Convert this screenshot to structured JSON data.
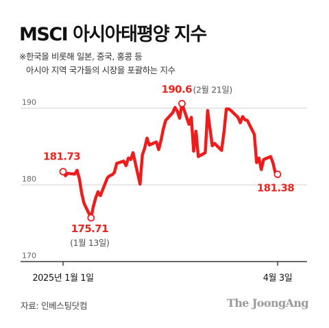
{
  "title": "MSCI 아시아태평양 지수",
  "subtitle_line1": "※한국을 비롯해 일본, 중국, 홍콩 등",
  "subtitle_line2": "아시아 지역 국가들의 시장을 포괄하는 지수",
  "source": "자료: 인베스팅닷컴",
  "brand": "The JoongAng",
  "colors": {
    "line": "#ee1d1d",
    "annotation": "#e8251f",
    "grid": "#cfcfcf",
    "axis_text": "#666666"
  },
  "chart_data": {
    "type": "line",
    "title": "MSCI 아시아태평양 지수",
    "ylim": [
      170,
      190
    ],
    "yticks": [
      170,
      180,
      190
    ],
    "grid": true,
    "xticks": [
      "2025년 1월 1일",
      "4월 3일"
    ],
    "series": [
      {
        "name": "",
        "x": [
          "2025-01-01",
          "2025-01-02",
          "2025-01-03",
          "2025-01-06",
          "2025-01-07",
          "2025-01-08",
          "2025-01-09",
          "2025-01-10",
          "2025-01-13",
          "2025-01-14",
          "2025-01-15",
          "2025-01-16",
          "2025-01-17",
          "2025-01-20",
          "2025-01-21",
          "2025-01-22",
          "2025-01-23",
          "2025-01-24",
          "2025-01-27",
          "2025-01-28",
          "2025-01-29",
          "2025-01-30",
          "2025-01-31",
          "2025-02-03",
          "2025-02-04",
          "2025-02-05",
          "2025-02-06",
          "2025-02-07",
          "2025-02-10",
          "2025-02-11",
          "2025-02-12",
          "2025-02-13",
          "2025-02-14",
          "2025-02-17",
          "2025-02-18",
          "2025-02-19",
          "2025-02-20",
          "2025-02-21",
          "2025-02-24",
          "2025-02-25",
          "2025-02-26",
          "2025-02-27",
          "2025-02-28",
          "2025-03-03",
          "2025-03-04",
          "2025-03-05",
          "2025-03-06",
          "2025-03-07",
          "2025-03-10",
          "2025-03-11",
          "2025-03-12",
          "2025-03-13",
          "2025-03-14",
          "2025-03-17",
          "2025-03-18",
          "2025-03-19",
          "2025-03-20",
          "2025-03-21",
          "2025-03-24",
          "2025-03-25",
          "2025-03-26",
          "2025-03-27",
          "2025-03-28",
          "2025-03-31",
          "2025-04-01",
          "2025-04-02",
          "2025-04-03"
        ],
        "values": [
          181.73,
          181.2,
          181.5,
          181.4,
          181.9,
          180.8,
          178.9,
          177.6,
          175.71,
          177.2,
          178.3,
          179.1,
          178.6,
          180.9,
          181.2,
          181.3,
          181.6,
          182.8,
          183.1,
          182.5,
          183.5,
          183.3,
          184.2,
          180.1,
          183.9,
          184.8,
          186.1,
          185.2,
          185.6,
          184.6,
          185.8,
          187.3,
          188.4,
          189.4,
          190.1,
          189.6,
          188.7,
          190.6,
          187.9,
          188.8,
          184.4,
          187.0,
          183.7,
          184.2,
          189.7,
          187.4,
          185.1,
          185.4,
          184.5,
          186.9,
          189.9,
          189.9,
          189.7,
          188.8,
          188.1,
          188.9,
          188.5,
          188.4,
          186.6,
          182.9,
          183.5,
          182.0,
          183.3,
          183.7,
          182.9,
          181.6,
          181.38
        ]
      }
    ],
    "annotations": [
      {
        "label": "181.73",
        "note": "",
        "x": "2025-01-01",
        "y": 181.73
      },
      {
        "label": "175.71",
        "note": "(1월 13일)",
        "x": "2025-01-13",
        "y": 175.71
      },
      {
        "label": "190.6",
        "note": "(2월 21일)",
        "x": "2025-02-21",
        "y": 190.6
      },
      {
        "label": "181.38",
        "note": "",
        "x": "2025-04-03",
        "y": 181.38
      }
    ]
  }
}
